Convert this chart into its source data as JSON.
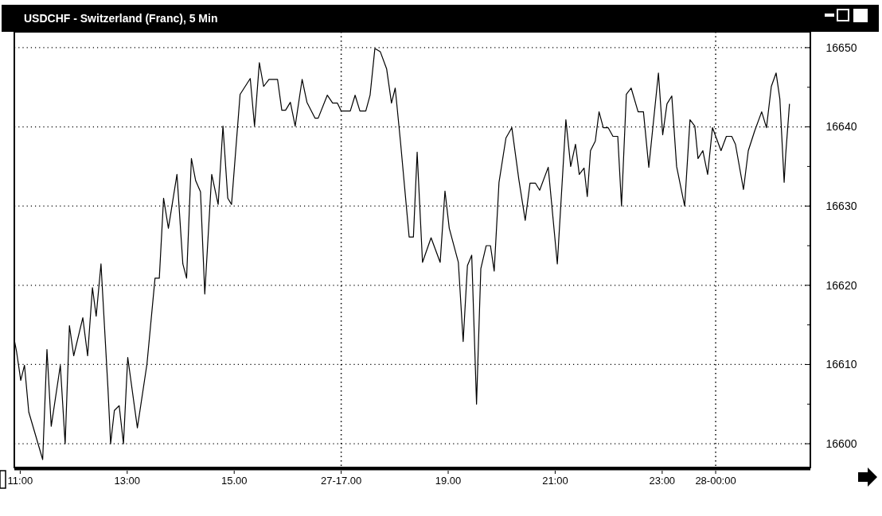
{
  "chart_data": {
    "type": "line",
    "title": "USDCHF - Switzerland (Franc), 5 Min",
    "xlim": [
      10.89,
      25.77
    ],
    "xticks": [
      {
        "value": 11,
        "label": "11:00"
      },
      {
        "value": 13,
        "label": "13:00"
      },
      {
        "value": 15,
        "label": "15.00"
      },
      {
        "value": 17,
        "label": "27-17.00"
      },
      {
        "value": 19,
        "label": "19.00"
      },
      {
        "value": 21,
        "label": "21:00"
      },
      {
        "value": 23,
        "label": "23:00"
      },
      {
        "value": 24,
        "label": "28-00:00"
      }
    ],
    "ylim": [
      16597,
      16652
    ],
    "yticks": [
      16600,
      {
        "value": 16605,
        "label": null
      },
      16610,
      {
        "value": 16615,
        "label": null
      },
      16620,
      {
        "value": 16625,
        "label": null
      },
      16630,
      {
        "value": 16635,
        "label": null
      },
      16640,
      {
        "value": 16645,
        "label": null
      },
      16650
    ],
    "grid": "y",
    "line_style": "solid",
    "ref_lines": [
      {
        "axis": "x",
        "value": 17,
        "line_style": "dotted"
      },
      {
        "axis": "x",
        "value": 24,
        "line_style": "dotted"
      }
    ],
    "series": [
      {
        "color": "#000000",
        "x": [
          10.89,
          10.93,
          11.01,
          11.08,
          11.16,
          11.42,
          11.5,
          11.58,
          11.75,
          11.84,
          11.92,
          12.0,
          12.17,
          12.26,
          12.35,
          12.42,
          12.51,
          12.64,
          12.69,
          12.76,
          12.85,
          12.93,
          13.01,
          13.19,
          13.37,
          13.52,
          13.6,
          13.68,
          13.77,
          13.93,
          14.04,
          14.11,
          14.2,
          14.28,
          14.37,
          14.45,
          14.58,
          14.7,
          14.79,
          14.88,
          14.95,
          15.11,
          15.3,
          15.38,
          15.47,
          15.55,
          15.65,
          15.81,
          15.89,
          15.96,
          16.05,
          16.14,
          16.27,
          16.36,
          16.51,
          16.57,
          16.74,
          16.84,
          16.93,
          17.0,
          17.17,
          17.26,
          17.35,
          17.46,
          17.54,
          17.63,
          17.73,
          17.85,
          17.94,
          18.01,
          18.11,
          18.27,
          18.35,
          18.42,
          18.52,
          18.68,
          18.85,
          18.94,
          19.02,
          19.19,
          19.28,
          19.36,
          19.44,
          19.53,
          19.61,
          19.71,
          19.79,
          19.86,
          19.95,
          20.08,
          20.19,
          20.32,
          20.44,
          20.53,
          20.63,
          20.71,
          20.87,
          21.04,
          21.2,
          21.29,
          21.38,
          21.45,
          21.54,
          21.6,
          21.66,
          21.75,
          21.82,
          21.9,
          21.99,
          22.08,
          22.17,
          22.24,
          22.33,
          22.42,
          22.55,
          22.65,
          22.75,
          22.93,
          23.01,
          23.09,
          23.18,
          23.27,
          23.42,
          23.52,
          23.61,
          23.67,
          23.76,
          23.85,
          23.94,
          24.1,
          24.2,
          24.3,
          24.37,
          24.52,
          24.61,
          24.73,
          24.86,
          24.95,
          25.04,
          25.13,
          25.2,
          25.28,
          25.31,
          25.38
        ],
        "values": [
          16613.1,
          16611.7,
          16608,
          16609.9,
          16604,
          16598,
          16611.9,
          16602.2,
          16609.9,
          16600,
          16614.9,
          16611.1,
          16615.9,
          16611.1,
          16619.7,
          16616.1,
          16622.7,
          16607,
          16600,
          16604.2,
          16604.8,
          16600,
          16610.9,
          16602,
          16610.1,
          16620.9,
          16620.9,
          16631,
          16627.2,
          16634,
          16622.7,
          16620.9,
          16636,
          16633.2,
          16631.8,
          16618.9,
          16634,
          16630.2,
          16640.1,
          16631,
          16630.2,
          16644.1,
          16646.1,
          16640.1,
          16648.1,
          16645.1,
          16646,
          16646,
          16642.1,
          16642.1,
          16643.1,
          16640.1,
          16646,
          16643.1,
          16641.1,
          16641.1,
          16644,
          16643,
          16643,
          16642,
          16642,
          16644,
          16642,
          16642,
          16644,
          16649.9,
          16649.5,
          16647.3,
          16643,
          16644.9,
          16638,
          16626.1,
          16626.1,
          16636.8,
          16622.9,
          16626,
          16622.9,
          16631.9,
          16627.2,
          16622.9,
          16612.9,
          16622.5,
          16623.8,
          16605,
          16622.1,
          16625,
          16625,
          16621.8,
          16633,
          16638.6,
          16639.9,
          16633.4,
          16628.2,
          16632.9,
          16632.9,
          16632,
          16634.9,
          16622.7,
          16640.9,
          16635,
          16637.8,
          16634,
          16634.8,
          16631.2,
          16637,
          16638.2,
          16641.9,
          16639.9,
          16639.9,
          16638.8,
          16638.8,
          16630,
          16644.1,
          16644.9,
          16641.9,
          16641.9,
          16634.9,
          16646.8,
          16639,
          16642.9,
          16643.9,
          16635,
          16630,
          16640.9,
          16640.1,
          16636,
          16637,
          16634,
          16639.9,
          16637,
          16638.8,
          16638.8,
          16637.8,
          16632.1,
          16637,
          16639.5,
          16641.9,
          16639.9,
          16645.1,
          16646.8,
          16643.5,
          16633,
          16636.6,
          16642.9
        ]
      }
    ]
  }
}
